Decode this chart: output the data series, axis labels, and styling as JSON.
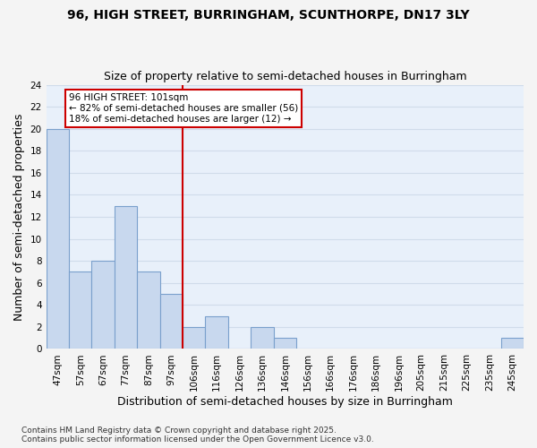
{
  "title1": "96, HIGH STREET, BURRINGHAM, SCUNTHORPE, DN17 3LY",
  "title2": "Size of property relative to semi-detached houses in Burringham",
  "xlabel": "Distribution of semi-detached houses by size in Burringham",
  "ylabel": "Number of semi-detached properties",
  "categories": [
    "47sqm",
    "57sqm",
    "67sqm",
    "77sqm",
    "87sqm",
    "97sqm",
    "106sqm",
    "116sqm",
    "126sqm",
    "136sqm",
    "146sqm",
    "156sqm",
    "166sqm",
    "176sqm",
    "186sqm",
    "196sqm",
    "205sqm",
    "215sqm",
    "225sqm",
    "235sqm",
    "245sqm"
  ],
  "values": [
    20,
    7,
    8,
    13,
    7,
    5,
    2,
    3,
    0,
    2,
    1,
    0,
    0,
    0,
    0,
    0,
    0,
    0,
    0,
    0,
    1
  ],
  "bar_color": "#c8d8ee",
  "bar_edge_color": "#7aa0cc",
  "marker_color": "#cc0000",
  "annotation_text": "96 HIGH STREET: 101sqm\n← 82% of semi-detached houses are smaller (56)\n18% of semi-detached houses are larger (12) →",
  "annotation_box_color": "#ffffff",
  "annotation_box_edge_color": "#cc0000",
  "footnote": "Contains HM Land Registry data © Crown copyright and database right 2025.\nContains public sector information licensed under the Open Government Licence v3.0.",
  "ylim": [
    0,
    24
  ],
  "yticks": [
    0,
    2,
    4,
    6,
    8,
    10,
    12,
    14,
    16,
    18,
    20,
    22,
    24
  ],
  "bg_color": "#e8f0fa",
  "grid_color": "#d0dcea",
  "fig_bg_color": "#f4f4f4",
  "title_fontsize": 10,
  "subtitle_fontsize": 9,
  "tick_fontsize": 7.5,
  "label_fontsize": 9,
  "footnote_fontsize": 6.5
}
